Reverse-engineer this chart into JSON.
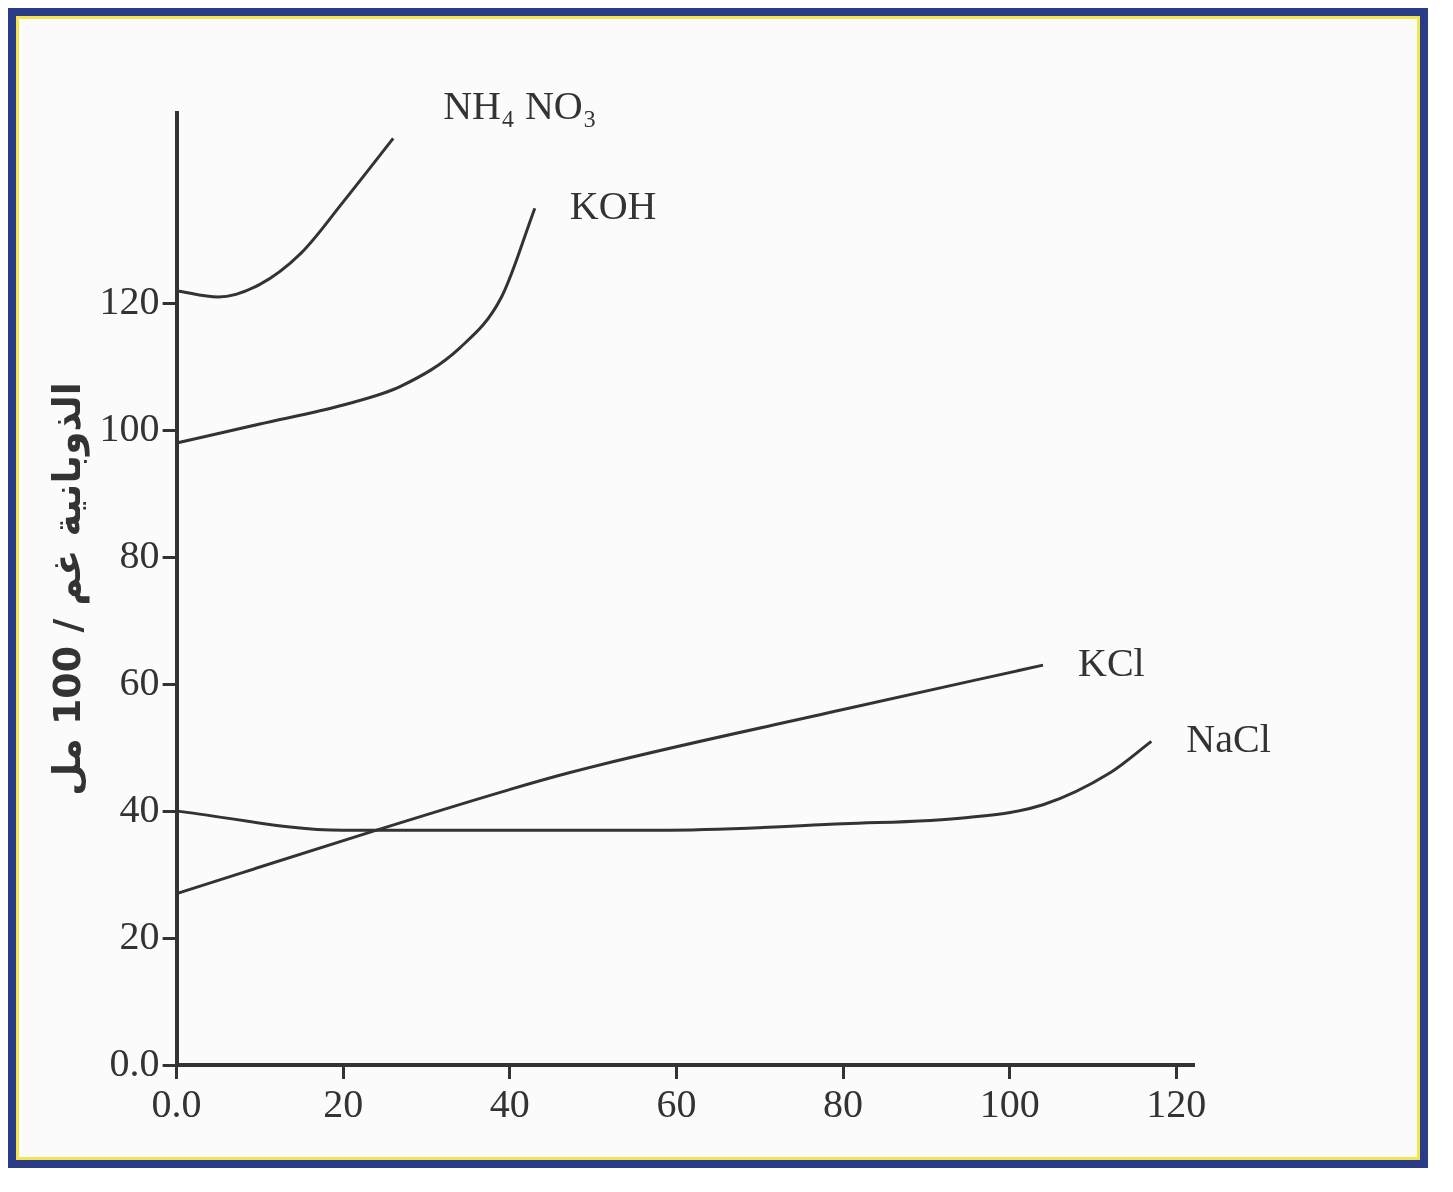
{
  "chart_data": {
    "type": "line",
    "ylabel": "الذوبانية غم / 100 مل",
    "xlim": [
      0,
      122
    ],
    "ylim": [
      0,
      150
    ],
    "xticks": [
      {
        "value": 0,
        "label": "0.0"
      },
      20,
      40,
      60,
      80,
      100,
      120
    ],
    "yticks": [
      {
        "value": 0,
        "label": "0.0"
      },
      20,
      40,
      60,
      80,
      100,
      120
    ],
    "grid": false,
    "legend": false,
    "marker": "none",
    "line_style": "solid",
    "series": [
      {
        "name": "NH₄ NO₃",
        "color": "#333333",
        "x": [
          0,
          5,
          10,
          15,
          20,
          26
        ],
        "values": [
          122,
          121,
          123,
          128,
          136,
          146
        ]
      },
      {
        "name": "KOH",
        "color": "#333333",
        "x": [
          0,
          10,
          20,
          27,
          34,
          39,
          43
        ],
        "values": [
          98,
          101,
          104,
          107,
          113,
          121,
          135
        ]
      },
      {
        "name": "KCl",
        "color": "#333333",
        "x": [
          0,
          24,
          47,
          80,
          104
        ],
        "values": [
          27,
          37,
          46,
          56,
          63
        ]
      },
      {
        "name": "NaCl",
        "color": "#333333",
        "x": [
          0,
          20,
          58,
          80,
          95,
          104,
          112,
          117
        ],
        "values": [
          40,
          37,
          37,
          38,
          39,
          41,
          46,
          51
        ]
      }
    ]
  }
}
